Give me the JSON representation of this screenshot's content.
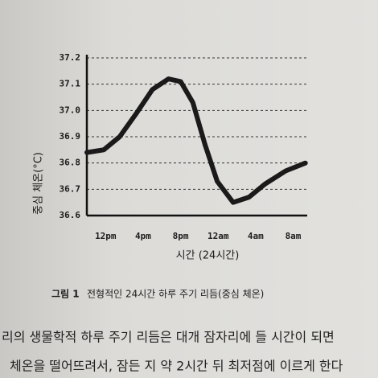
{
  "chart_data": {
    "type": "line",
    "ylabel": "중심 체온(°C)",
    "xlabel": "시간 (24시간)",
    "caption_label": "그림 1",
    "caption": "전형적인 24시간 하루 주기 리듬(중심 체온)",
    "xlim": [
      -2,
      21.5
    ],
    "ylim": [
      36.6,
      37.2
    ],
    "xticks": [
      {
        "value": 0,
        "label": "12pm"
      },
      {
        "value": 4,
        "label": "4pm"
      },
      {
        "value": 8,
        "label": "8pm"
      },
      {
        "value": 12,
        "label": "12am"
      },
      {
        "value": 16,
        "label": "4am"
      },
      {
        "value": 20,
        "label": "8am"
      }
    ],
    "yticks": [
      36.6,
      36.7,
      36.8,
      36.9,
      {
        "value": 37,
        "label": "37.0"
      },
      37.1,
      37.2
    ],
    "grid": true,
    "series": [
      {
        "color": "#1a1a1a",
        "x": [
          -2,
          -0.2,
          1.5,
          3.3,
          5,
          6.7,
          8,
          9.3,
          10.6,
          11.9,
          13.6,
          15.3,
          17,
          19.2,
          21.3
        ],
        "values": [
          36.84,
          36.85,
          36.9,
          36.99,
          37.08,
          37.12,
          37.11,
          37.03,
          36.87,
          36.73,
          36.65,
          36.67,
          36.72,
          36.77,
          36.8
        ]
      }
    ]
  },
  "body": {
    "lines": [
      "리의 생물학적 하루 주기 리듬은 대개 잠자리에 들 시간이 되면",
      "체온을 떨어뜨려서, 잠든 지 약 2시간 뒤 최저점에 이르게 한다"
    ]
  }
}
